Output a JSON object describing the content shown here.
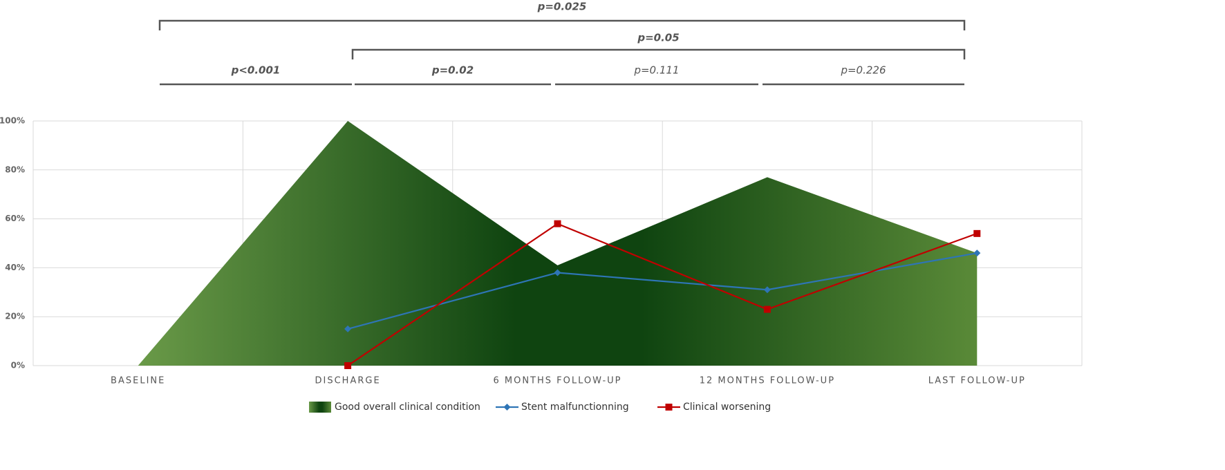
{
  "chart_data": {
    "type": "line",
    "categories": [
      "BASELINE",
      "DISCHARGE",
      "6 MONTHS FOLLOW-UP",
      "12 MONTHS FOLLOW-UP",
      "LAST FOLLOW-UP"
    ],
    "series": [
      {
        "name": "Good overall clinical condition",
        "kind": "area",
        "color": "#0f4410",
        "values": [
          0,
          100,
          41,
          77,
          46
        ]
      },
      {
        "name": "Stent malfunctionning",
        "kind": "line",
        "marker": "diamond",
        "color": "#2e75b6",
        "values": [
          null,
          15,
          38,
          31,
          46
        ]
      },
      {
        "name": "Clinical worsening",
        "kind": "line",
        "marker": "square",
        "color": "#c00000",
        "values": [
          null,
          0,
          58,
          23,
          54
        ]
      }
    ],
    "ylim": [
      0,
      100
    ],
    "yticks": [
      {
        "value": 0,
        "label": "0%"
      },
      {
        "value": 20,
        "label": "20%"
      },
      {
        "value": 40,
        "label": "40%"
      },
      {
        "value": 60,
        "label": "60%"
      },
      {
        "value": 80,
        "label": "80%"
      },
      {
        "value": 100,
        "label": "100%"
      }
    ],
    "grid": true,
    "legend": "bottom",
    "annotations": [
      {
        "text": "p=0.025",
        "bold": true,
        "italic": true
      },
      {
        "text": "p=0.05",
        "bold": true,
        "italic": true
      },
      {
        "text": "p<0.001",
        "bold": true,
        "italic": true
      },
      {
        "text": "p=0.02",
        "bold": true,
        "italic": true
      },
      {
        "text": "p=0.111",
        "bold": false,
        "italic": true
      },
      {
        "text": "p=0.226",
        "bold": false,
        "italic": true
      }
    ]
  }
}
